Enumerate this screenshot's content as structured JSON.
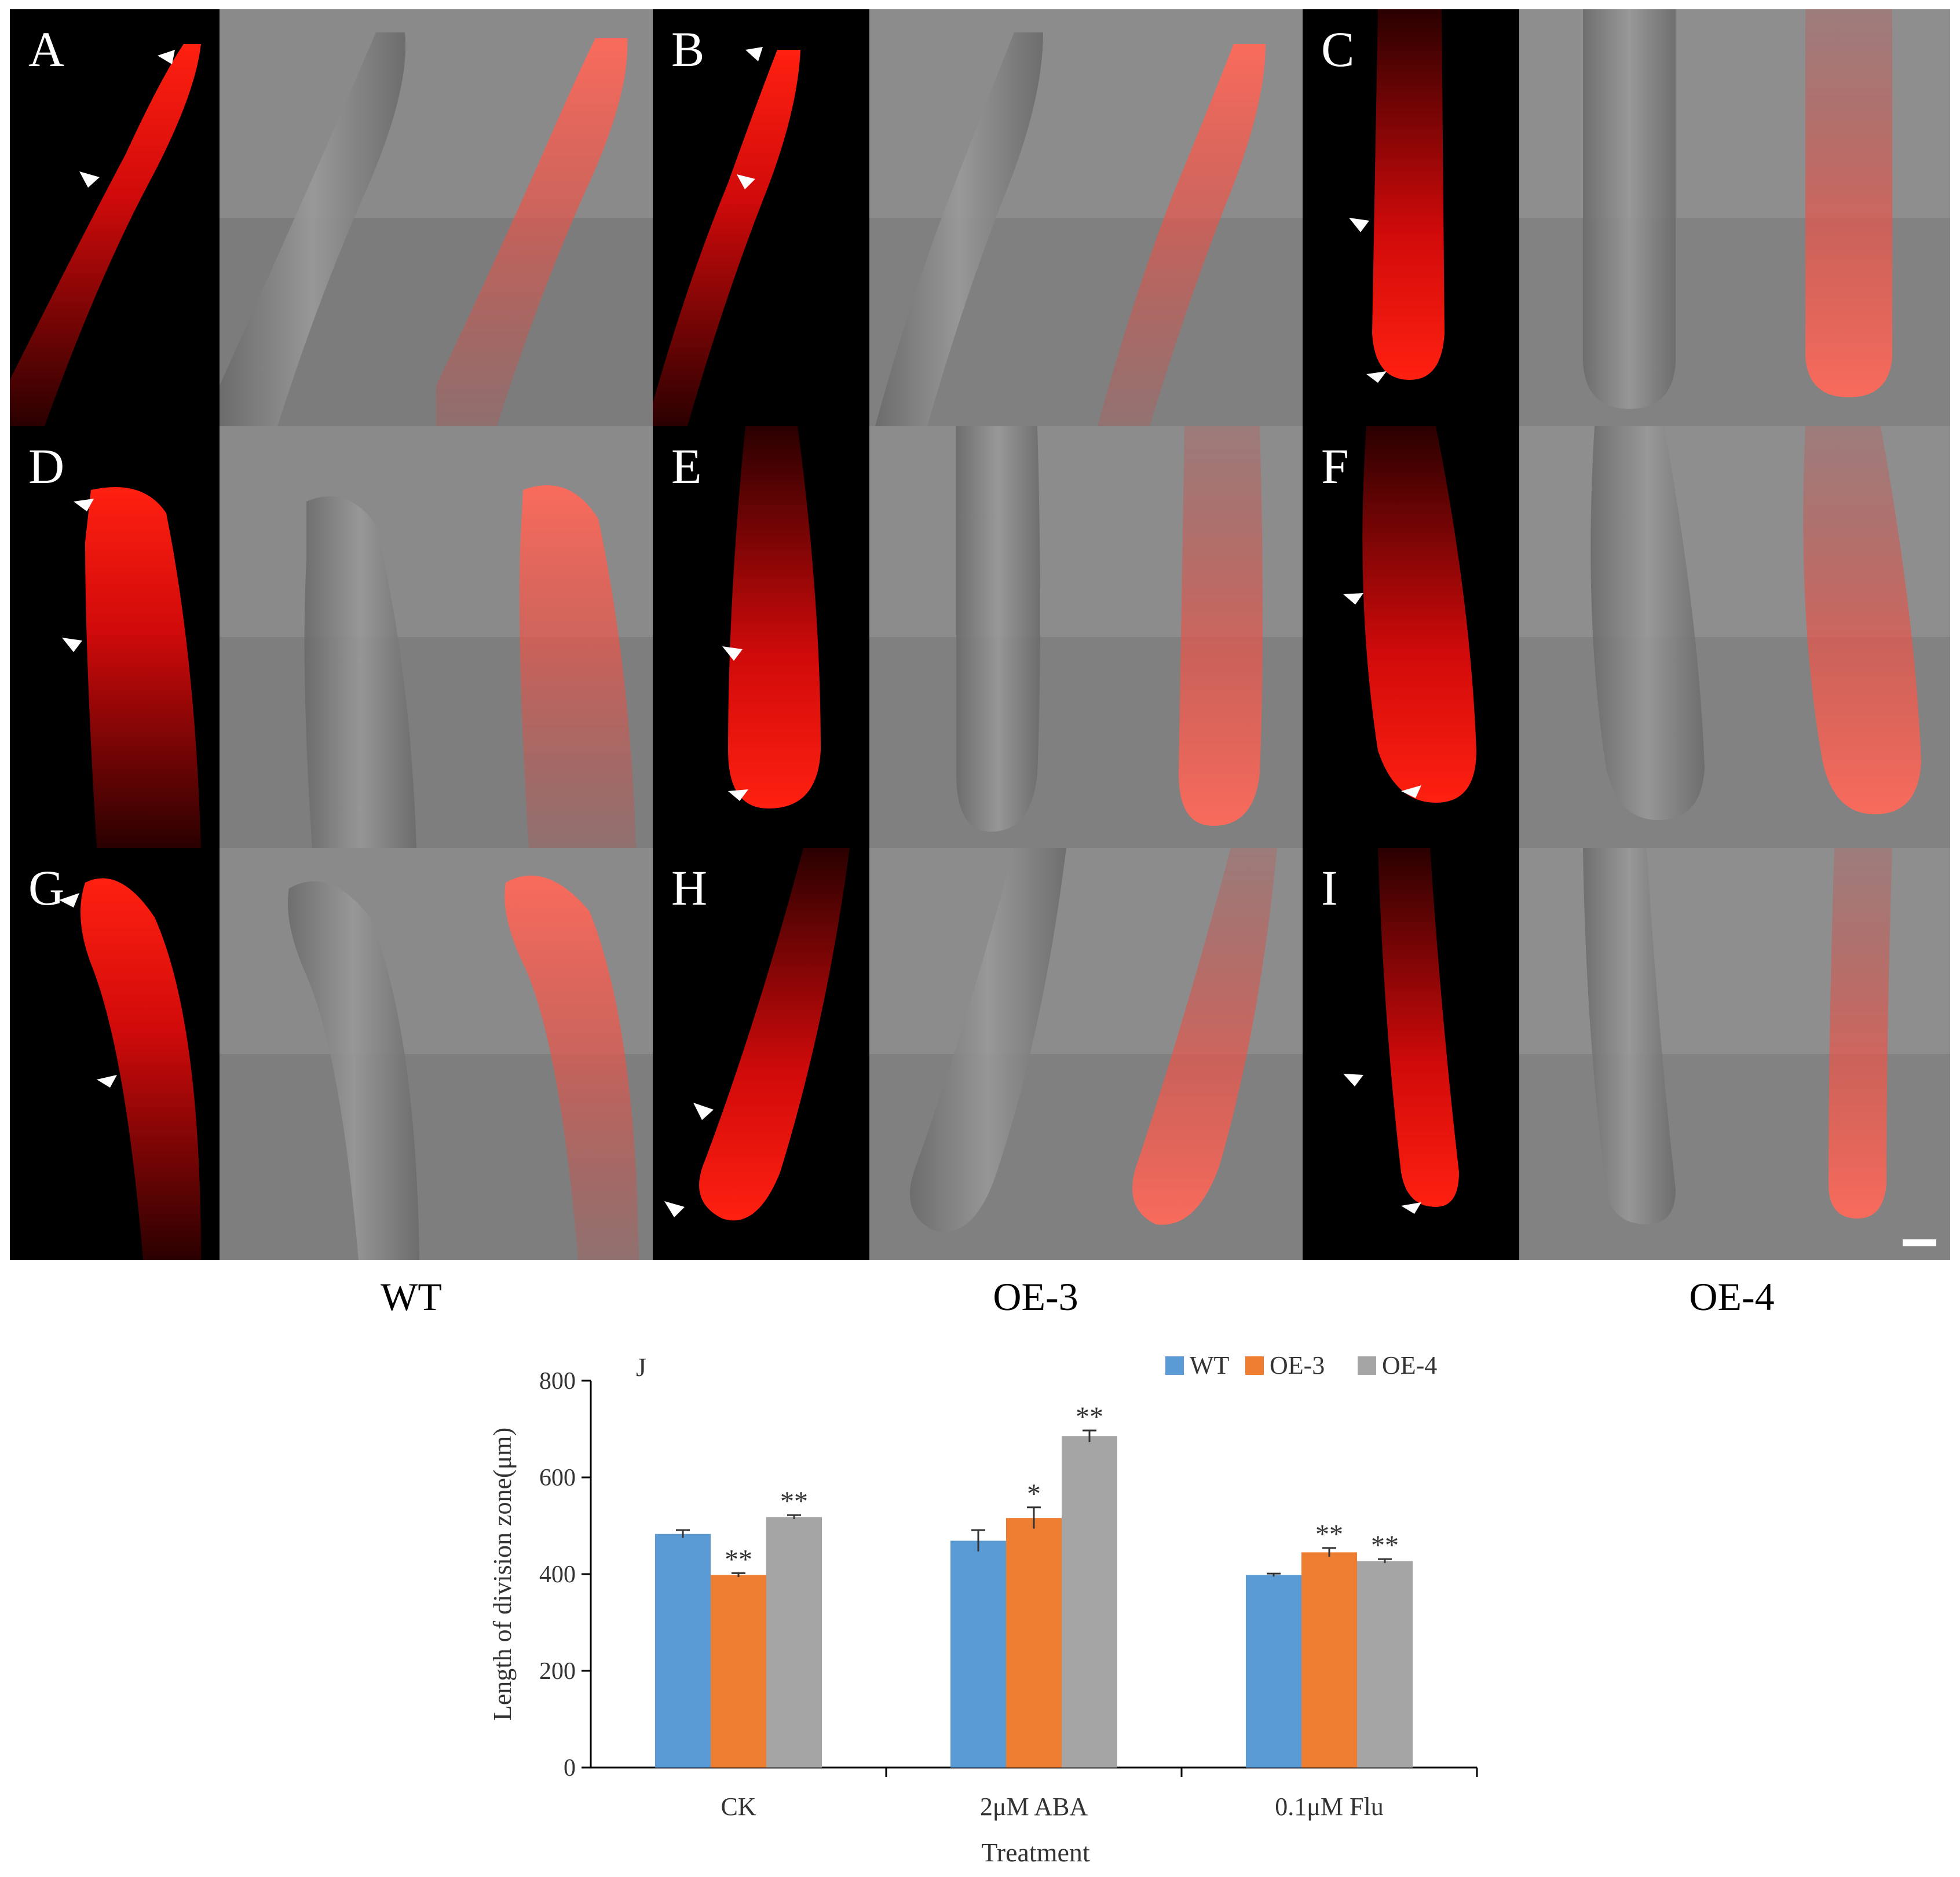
{
  "figure": {
    "panels": [
      {
        "letter": "A"
      },
      {
        "letter": "B"
      },
      {
        "letter": "C"
      },
      {
        "letter": "D"
      },
      {
        "letter": "E"
      },
      {
        "letter": "F"
      },
      {
        "letter": "G"
      },
      {
        "letter": "H"
      },
      {
        "letter": "I"
      }
    ],
    "group_labels": [
      "WT",
      "OE-3",
      "OE-4"
    ]
  },
  "chart_data": {
    "type": "bar",
    "panel_label": "J",
    "title": "",
    "xlabel": "Treatment",
    "ylabel": "Length of division zone(μm)",
    "ylim": [
      0,
      800
    ],
    "yticks": [
      0,
      200,
      400,
      600,
      800
    ],
    "categories": [
      "CK",
      "2μM ABA",
      "0.1μM Flu"
    ],
    "series": [
      {
        "name": "WT",
        "color": "#5b9bd5",
        "values": [
          483,
          469,
          398
        ],
        "errors": [
          8,
          22,
          3
        ],
        "significance": [
          "",
          "",
          ""
        ]
      },
      {
        "name": "OE-3",
        "color": "#ed7d31",
        "values": [
          398,
          516,
          445
        ],
        "errors": [
          4,
          22,
          9
        ],
        "significance": [
          "**",
          "*",
          "**"
        ]
      },
      {
        "name": "OE-4",
        "color": "#a5a5a5",
        "values": [
          518,
          685,
          427
        ],
        "errors": [
          4,
          12,
          4
        ],
        "significance": [
          "**",
          "**",
          "**"
        ]
      }
    ],
    "legend_position": "top-right"
  }
}
